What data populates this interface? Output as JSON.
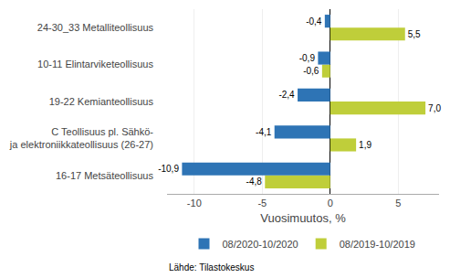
{
  "chart_data": {
    "type": "bar",
    "orientation": "horizontal",
    "categories": [
      "16-17 Metsäteollisuus",
      "C Teollisuus pl. Sähkö-\nja elektroniikkateollisuus (26-27)",
      "19-22 Kemianteollisuus",
      "10-11 Elintarviketeollisuus",
      "24-30_33 Metalliteollisuus"
    ],
    "series": [
      {
        "name": "08/2020-10/2020",
        "color": "#2E74B5",
        "values": [
          -10.9,
          -4.1,
          -2.4,
          -0.9,
          -0.4
        ],
        "value_labels": [
          "-10,9",
          "-4,1",
          "-2,4",
          "-0,9",
          "-0,4"
        ]
      },
      {
        "name": "08/2019-10/2019",
        "color": "#BFCE3A",
        "values": [
          -4.8,
          1.9,
          7.0,
          -0.6,
          5.5
        ],
        "value_labels": [
          "-4,8",
          "1,9",
          "7,0",
          "-0,6",
          "5,5"
        ]
      }
    ],
    "xlabel": "Vuosimuutos, %",
    "xlim": [
      -12,
      8
    ],
    "xticks": [
      -10,
      -5,
      0,
      5
    ],
    "grid": true,
    "data_labels": true,
    "legend": "bottom",
    "annotations": [
      {
        "text": "Lähde: Tilastokeskus"
      }
    ]
  }
}
